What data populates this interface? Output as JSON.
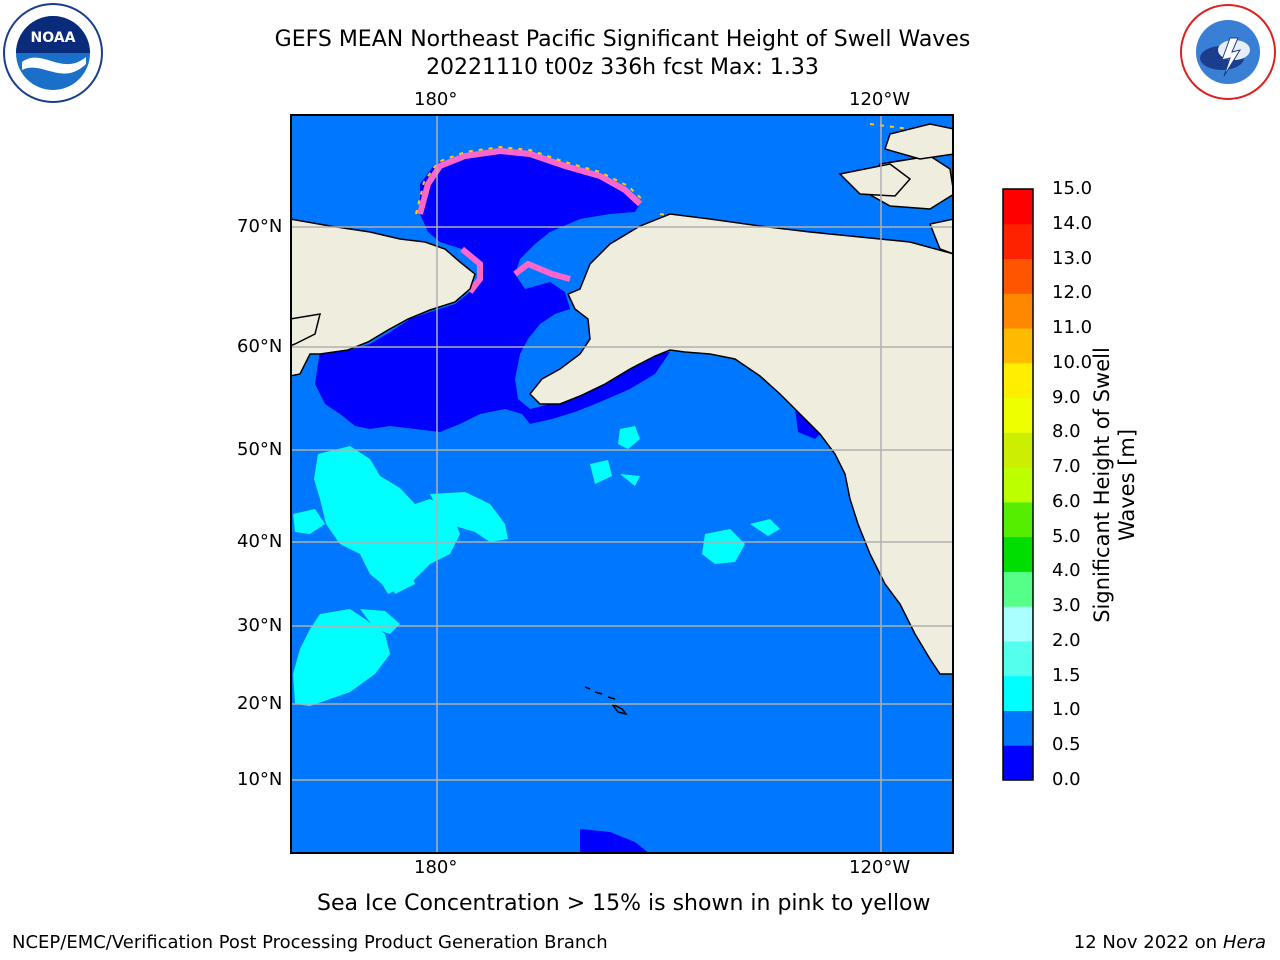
{
  "header": {
    "title_line1": "GEFS MEAN Northeast Pacific Significant Height of Swell Waves",
    "title_line2": "20221110 t00z 336h fcst   Max: 1.33"
  },
  "logos": {
    "left": {
      "name": "noaa-logo",
      "text": "NOAA",
      "ring_text": "NATIONAL OCEANIC AND ATMOSPHERIC ADMINISTRATION · U.S. DEPARTMENT OF COMMERCE"
    },
    "right": {
      "name": "nws-logo",
      "ring_text": "NATIONAL WEATHER SERVICE"
    }
  },
  "map": {
    "lon_labels_top": [
      "180°",
      "120°W"
    ],
    "lon_labels_bottom": [
      "180°",
      "120°W"
    ],
    "lat_labels": [
      "70°N",
      "60°N",
      "50°N",
      "40°N",
      "30°N",
      "20°N",
      "10°N"
    ],
    "colors": {
      "ocean": "#0077ff",
      "dark": "#0000ff",
      "cyan": "#00ffff",
      "land": "#efedde",
      "grid": "#b0b0b0",
      "ice_pink": "#ff66cc",
      "ice_yellow": "#ffcc00"
    }
  },
  "colorbar": {
    "label_line1": "Significant Height of Swell",
    "label_line2": "Waves [m]",
    "ticks": [
      "0.0",
      "0.5",
      "1.0",
      "1.5",
      "2.0",
      "3.0",
      "4.0",
      "5.0",
      "6.0",
      "7.0",
      "8.0",
      "9.0",
      "10.0",
      "11.0",
      "12.0",
      "13.0",
      "14.0",
      "15.0"
    ],
    "colors": [
      "#0000ff",
      "#0077ff",
      "#00ffff",
      "#55ffee",
      "#aaffff",
      "#55ff88",
      "#00dd00",
      "#55ee00",
      "#bbff00",
      "#ccee00",
      "#eeff00",
      "#ffee00",
      "#ffbb00",
      "#ff8800",
      "#ff5500",
      "#ff2200",
      "#ff0000"
    ]
  },
  "note": "Sea Ice Concentration > 15% is shown in pink to yellow",
  "footer": {
    "left": "NCEP/EMC/Verification Post Processing Product Generation Branch",
    "right_prefix": "12 Nov 2022 on",
    "right_host": "Hera"
  }
}
